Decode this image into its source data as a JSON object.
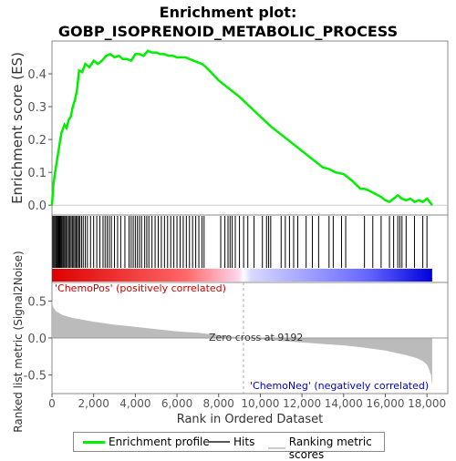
{
  "title_line1": "Enrichment plot:",
  "title_line2": "GOBP_ISOPRENOID_METABOLIC_PROCESS",
  "legend": {
    "enrichment_profile": "Enrichment profile",
    "hits": "Hits",
    "ranking_metric_scores": "Ranking metric scores"
  },
  "colors": {
    "es_line": "#00ee00",
    "positive": "#ff0000",
    "negative": "#0000ff",
    "metric_fill": "#bbbbbb"
  },
  "chart_data": [
    {
      "type": "line",
      "name": "enrichment-score-panel",
      "ylabel": "Enrichment score (ES)",
      "xlim": [
        0,
        19000
      ],
      "ylim": [
        -0.03,
        0.5
      ],
      "yticks": [
        "0.0",
        "0.1",
        "0.2",
        "0.3",
        "0.4"
      ],
      "series": [
        {
          "name": "Enrichment profile",
          "x": [
            0,
            60,
            150,
            250,
            350,
            450,
            600,
            700,
            800,
            900,
            1000,
            1100,
            1200,
            1300,
            1450,
            1600,
            1800,
            2000,
            2200,
            2400,
            2600,
            2800,
            3000,
            3200,
            3400,
            3600,
            3800,
            4000,
            4200,
            4400,
            4600,
            4800,
            5000,
            5200,
            5400,
            5600,
            5800,
            6000,
            6200,
            6400,
            6600,
            6800,
            7000,
            7200,
            7400,
            7700,
            8000,
            8500,
            9000,
            9500,
            10000,
            10500,
            11000,
            11500,
            12000,
            12500,
            13000,
            13300,
            13600,
            14000,
            14400,
            14800,
            15000,
            15200,
            15500,
            15800,
            16000,
            16200,
            16400,
            16600,
            16800,
            17000,
            17200,
            17400,
            17600,
            17800,
            18000,
            18250
          ],
          "y": [
            0.0,
            0.06,
            0.1,
            0.14,
            0.18,
            0.22,
            0.245,
            0.235,
            0.26,
            0.27,
            0.3,
            0.32,
            0.35,
            0.41,
            0.405,
            0.43,
            0.42,
            0.44,
            0.43,
            0.44,
            0.455,
            0.46,
            0.45,
            0.455,
            0.445,
            0.445,
            0.44,
            0.46,
            0.46,
            0.455,
            0.47,
            0.465,
            0.465,
            0.46,
            0.46,
            0.455,
            0.455,
            0.45,
            0.45,
            0.45,
            0.445,
            0.44,
            0.435,
            0.43,
            0.42,
            0.4,
            0.38,
            0.355,
            0.33,
            0.3,
            0.27,
            0.24,
            0.215,
            0.19,
            0.165,
            0.14,
            0.115,
            0.11,
            0.1,
            0.095,
            0.075,
            0.05,
            0.05,
            0.045,
            0.035,
            0.025,
            0.015,
            0.01,
            0.02,
            0.03,
            0.02,
            0.015,
            0.02,
            0.01,
            0.015,
            0.01,
            0.02,
            0.0
          ]
        }
      ]
    },
    {
      "type": "scatter",
      "name": "hits-panel",
      "series": [
        {
          "name": "Hits",
          "x": [
            40,
            90,
            140,
            190,
            230,
            270,
            310,
            350,
            390,
            430,
            470,
            520,
            570,
            620,
            680,
            740,
            800,
            860,
            920,
            980,
            1040,
            1100,
            1160,
            1220,
            1280,
            1340,
            1420,
            1500,
            1600,
            1700,
            1850,
            2000,
            2150,
            2300,
            2450,
            2550,
            2650,
            2750,
            2850,
            3000,
            3150,
            3300,
            3500,
            3700,
            3800,
            3900,
            4000,
            4100,
            4200,
            4300,
            4450,
            4550,
            4650,
            4800,
            4950,
            5100,
            5250,
            5400,
            5550,
            5700,
            5850,
            6000,
            6150,
            6300,
            6450,
            6600,
            6750,
            6900,
            7050,
            7200,
            7300,
            8100,
            8300,
            8450,
            8550,
            8650,
            8800,
            9000,
            9200,
            9400,
            9700,
            10100,
            10300,
            10400,
            10500,
            11000,
            11200,
            11400,
            11600,
            11800,
            12200,
            12500,
            12800,
            13300,
            13500,
            13900,
            14100,
            15000,
            15400,
            15800,
            16200,
            16400,
            16600,
            16700,
            16800,
            17000,
            17400,
            17800,
            18000
          ]
        }
      ]
    },
    {
      "type": "area",
      "name": "ranked-metric-panel",
      "ylabel": "Ranked list metric (Signal2Noise)",
      "xlabel": "Rank in Ordered Dataset",
      "xlim": [
        0,
        19000
      ],
      "ylim": [
        -0.75,
        0.75
      ],
      "xticks": [
        "0",
        "2,000",
        "4,000",
        "6,000",
        "8,000",
        "10,000",
        "12,000",
        "14,000",
        "16,000",
        "18,000"
      ],
      "yticks": [
        "0.5",
        "0.0",
        "-0.5"
      ],
      "positive_label": "'ChemoPos' (positively correlated)",
      "negative_label": "'ChemoNeg' (negatively correlated)",
      "zero_cross_label": "Zero cross at 9192",
      "zero_cross": 9192,
      "series": [
        {
          "name": "Ranking metric scores",
          "x": [
            0,
            50,
            200,
            500,
            1000,
            2000,
            3000,
            4000,
            5000,
            6000,
            7000,
            8000,
            9192,
            10000,
            11000,
            12000,
            13000,
            14000,
            15000,
            16000,
            16500,
            17000,
            17500,
            17800,
            18000,
            18100,
            18200,
            18250
          ],
          "y": [
            0.5,
            0.42,
            0.36,
            0.31,
            0.27,
            0.22,
            0.18,
            0.15,
            0.12,
            0.09,
            0.07,
            0.04,
            0.0,
            -0.02,
            -0.04,
            -0.06,
            -0.08,
            -0.1,
            -0.13,
            -0.17,
            -0.2,
            -0.23,
            -0.27,
            -0.31,
            -0.36,
            -0.42,
            -0.5,
            -0.65
          ]
        }
      ]
    }
  ]
}
